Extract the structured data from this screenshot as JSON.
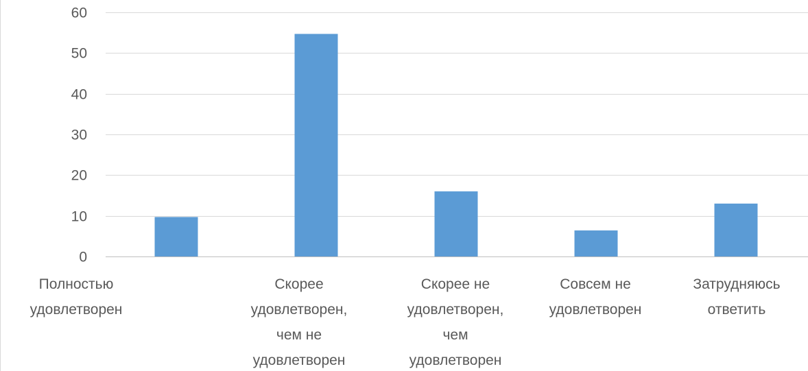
{
  "chart_data": {
    "type": "bar",
    "categories": [
      [
        "Полностью",
        "удовлетворен"
      ],
      [
        "Скорее",
        "удовлетворен,",
        "чем не",
        "удовлетворен"
      ],
      [
        "Скорее не",
        "удовлетворен,",
        "чем",
        "удовлетворен"
      ],
      [
        "Совсем не",
        "удовлетворен"
      ],
      [
        "Затрудняюсь",
        "ответить"
      ]
    ],
    "values": [
      9.7,
      54.7,
      16.0,
      6.4,
      13.0
    ],
    "yticks": [
      "0",
      "10",
      "20",
      "30",
      "40",
      "50",
      "60"
    ],
    "ylim": [
      0,
      60
    ],
    "grid": true,
    "colors": {
      "bar": "#5b9bd5",
      "grid": "#d9d9d9",
      "axis": "#bfbfbf",
      "text": "#595959"
    }
  }
}
